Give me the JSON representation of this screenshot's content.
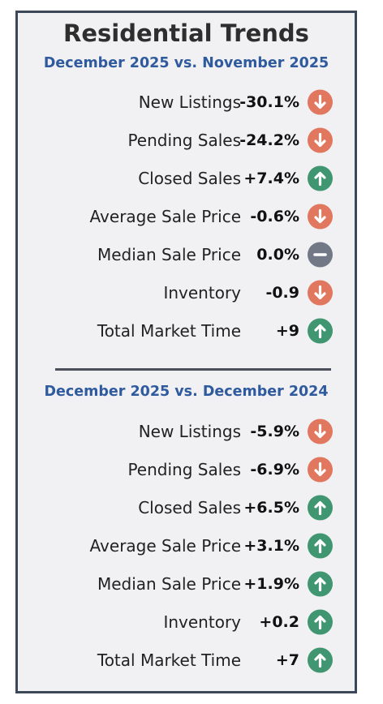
{
  "title": "Residential Trends",
  "sections": [
    {
      "subtitle": "December 2025 vs. November 2025",
      "rows": [
        {
          "label": "New Listings",
          "value": "-30.1%",
          "trend": "down"
        },
        {
          "label": "Pending Sales",
          "value": "-24.2%",
          "trend": "down"
        },
        {
          "label": "Closed Sales",
          "value": "+7.4%",
          "trend": "up"
        },
        {
          "label": "Average Sale Price",
          "value": "-0.6%",
          "trend": "down"
        },
        {
          "label": "Median Sale Price",
          "value": "0.0%",
          "trend": "flat"
        },
        {
          "label": "Inventory",
          "value": "-0.9",
          "trend": "down"
        },
        {
          "label": "Total Market Time",
          "value": "+9",
          "trend": "up"
        }
      ]
    },
    {
      "subtitle": "December 2025 vs. December 2024",
      "rows": [
        {
          "label": "New Listings",
          "value": "-5.9%",
          "trend": "down"
        },
        {
          "label": "Pending Sales",
          "value": "-6.9%",
          "trend": "down"
        },
        {
          "label": "Closed Sales",
          "value": "+6.5%",
          "trend": "up"
        },
        {
          "label": "Average Sale Price",
          "value": "+3.1%",
          "trend": "up"
        },
        {
          "label": "Median Sale Price",
          "value": "+1.9%",
          "trend": "up"
        },
        {
          "label": "Inventory",
          "value": "+0.2",
          "trend": "up"
        },
        {
          "label": "Total Market Time",
          "value": "+7",
          "trend": "up"
        }
      ]
    }
  ],
  "colors": {
    "down": "#e0775e",
    "up": "#3f9670",
    "flat": "#727886",
    "subtitle": "#2f5a9e",
    "border": "#3c4757"
  }
}
